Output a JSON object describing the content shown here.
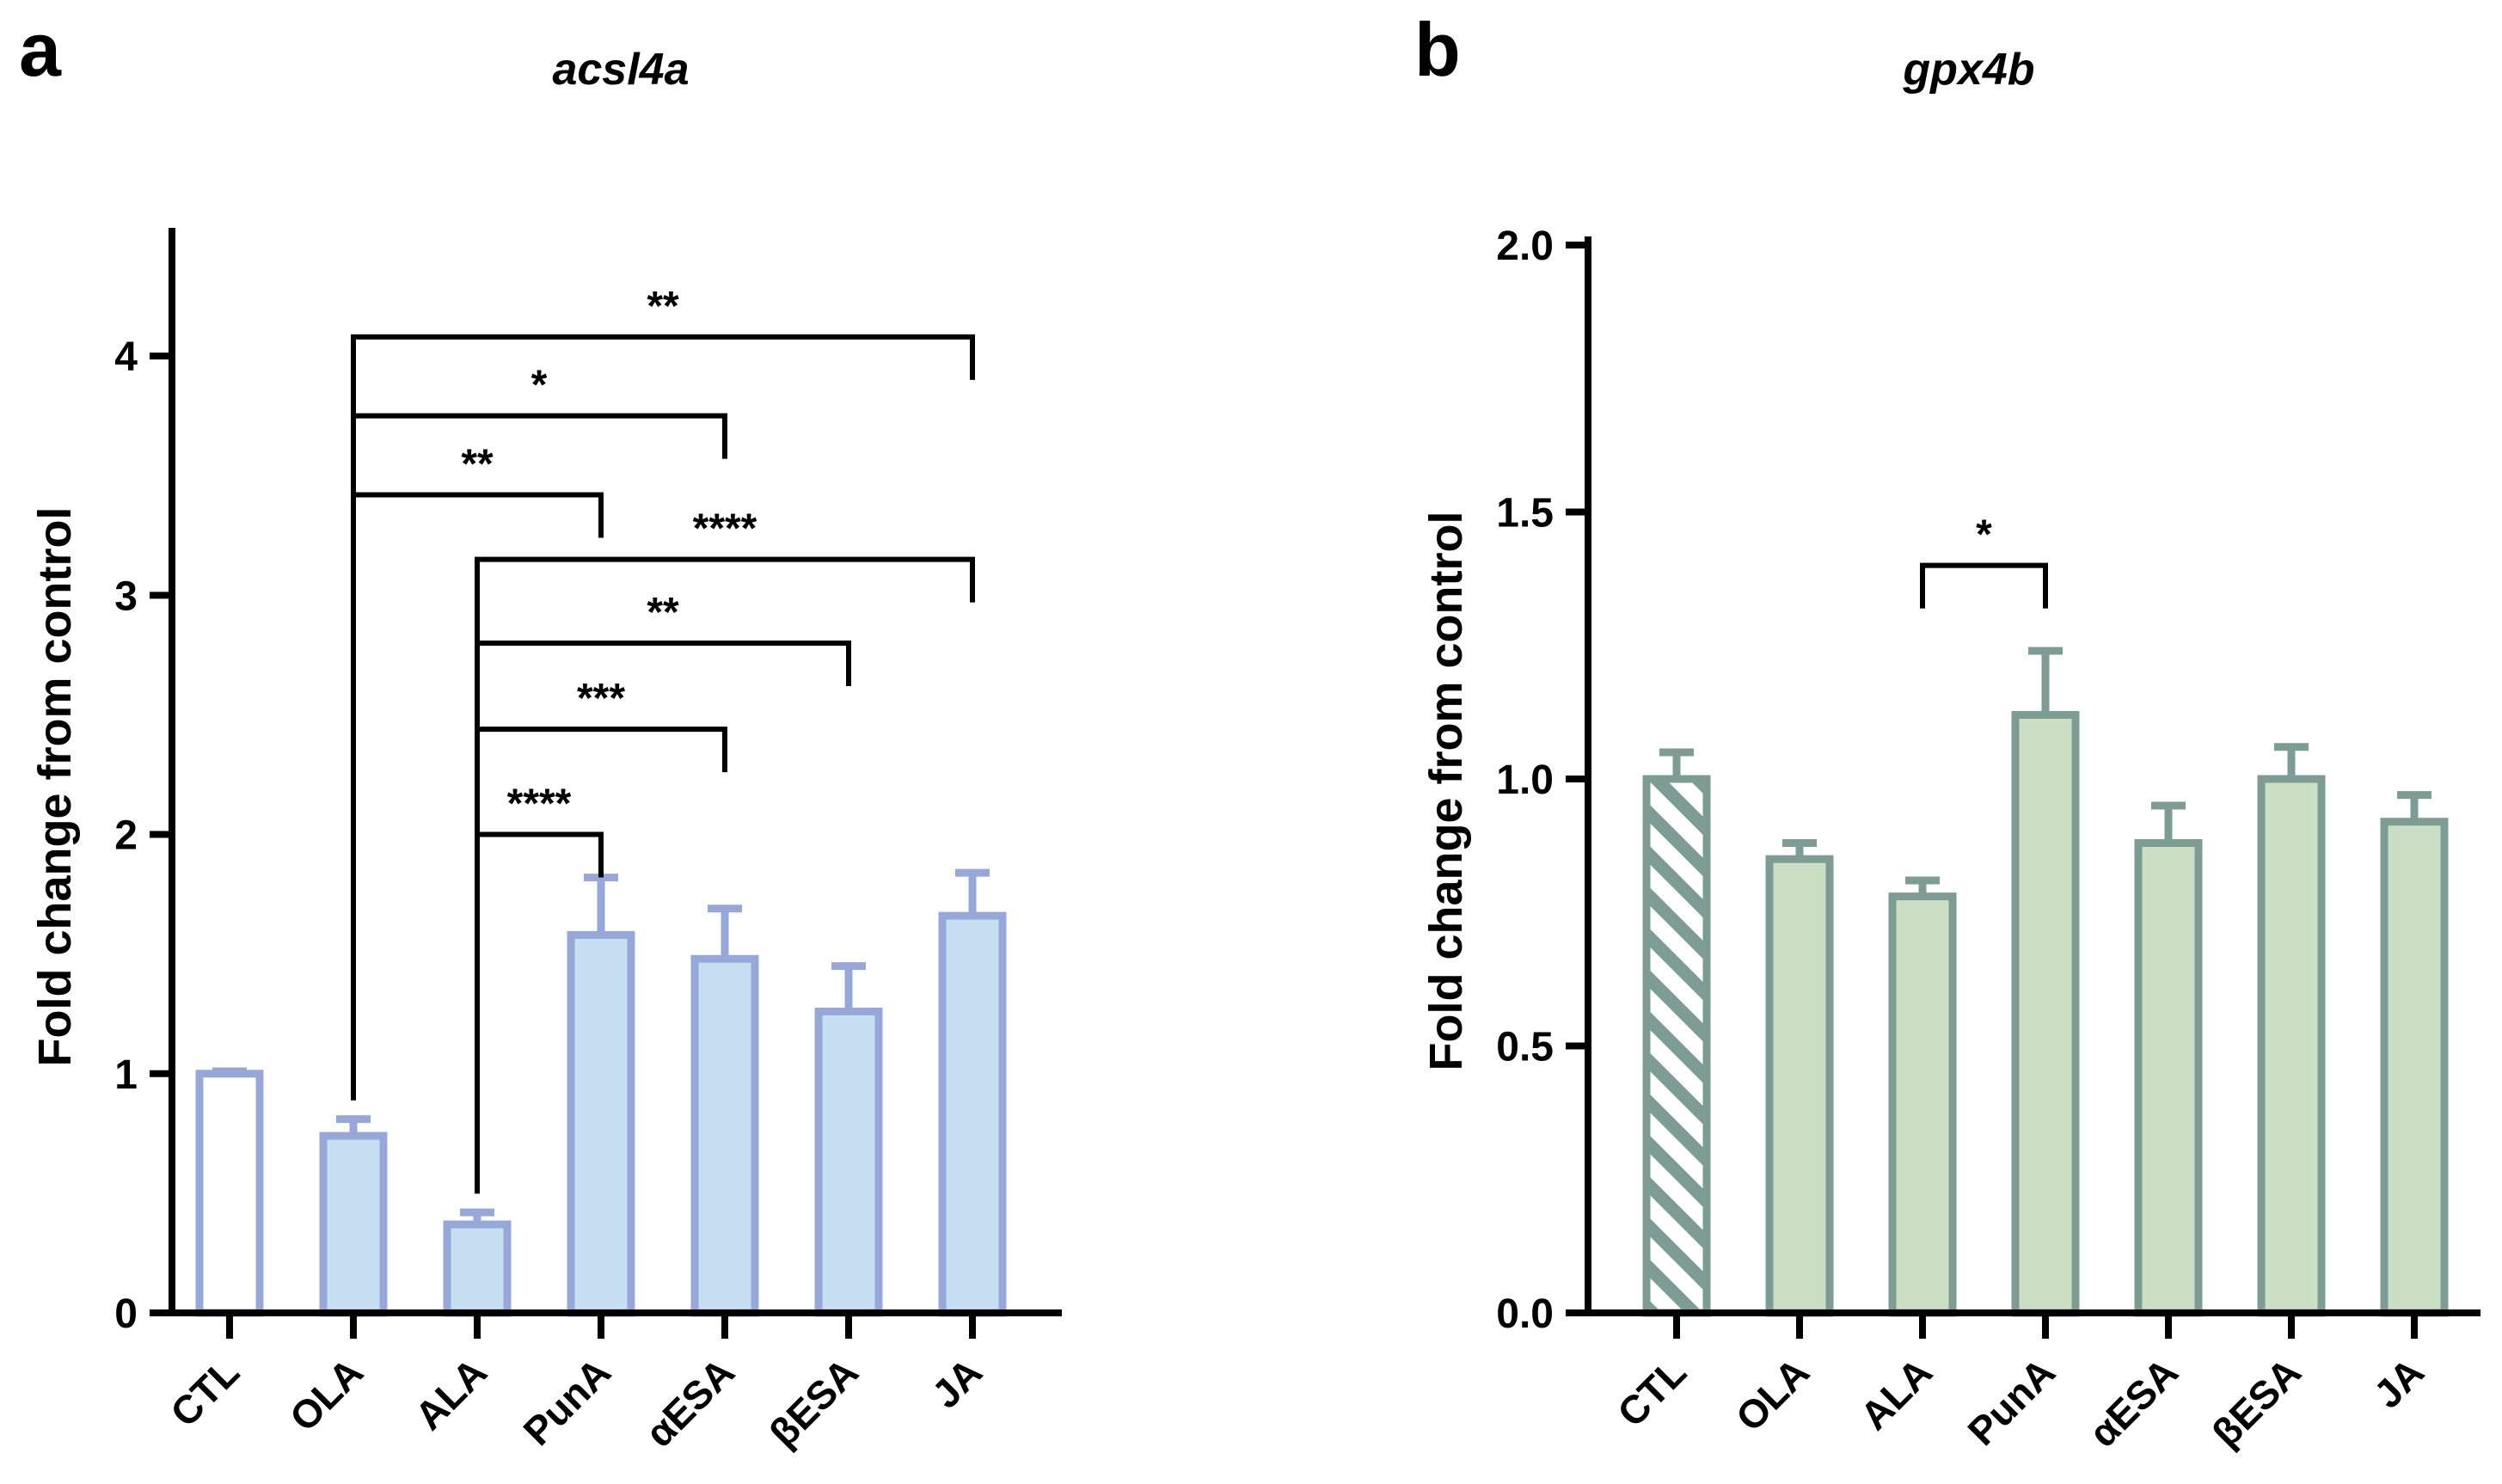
{
  "chart_data": [
    {
      "panel": "a",
      "type": "bar",
      "title": "acsl4a",
      "ylabel": "Fold change from control",
      "xlabel": "",
      "categories": [
        "CTL",
        "OLA",
        "ALA",
        "PunA",
        "αESA",
        "βESA",
        "JA"
      ],
      "values": [
        1.0,
        0.74,
        0.37,
        1.58,
        1.48,
        1.26,
        1.66
      ],
      "errors": [
        0.01,
        0.07,
        0.05,
        0.24,
        0.21,
        0.19,
        0.18
      ],
      "ylim": [
        0,
        4.5
      ],
      "yticks": [
        "0",
        "1",
        "2",
        "3",
        "4"
      ],
      "ytick_values": [
        0,
        1,
        2,
        3,
        4
      ],
      "grid": false,
      "colors": {
        "fill": "#c6dff3",
        "stroke": "#97a8d8",
        "control_fill": "#ffffff"
      },
      "significance": [
        {
          "from": 1,
          "to": 6,
          "label": "**",
          "y": 4.08
        },
        {
          "from": 1,
          "to": 4,
          "label": "*",
          "y": 3.75
        },
        {
          "from": 1,
          "to": 3,
          "label": "**",
          "y": 3.42
        },
        {
          "from": 2,
          "to": 6,
          "label": "****",
          "y": 3.15
        },
        {
          "from": 2,
          "to": 5,
          "label": "**",
          "y": 2.8
        },
        {
          "from": 2,
          "to": 4,
          "label": "***",
          "y": 2.44
        },
        {
          "from": 2,
          "to": 3,
          "label": "****",
          "y": 2.0
        }
      ]
    },
    {
      "panel": "b",
      "type": "bar",
      "title": "gpx4b",
      "ylabel": "Fold change from control",
      "xlabel": "",
      "categories": [
        "CTL",
        "OLA",
        "ALA",
        "PunA",
        "αESA",
        "βESA",
        "JA"
      ],
      "values": [
        1.0,
        0.85,
        0.78,
        1.12,
        0.88,
        1.0,
        0.92
      ],
      "errors": [
        0.05,
        0.03,
        0.03,
        0.12,
        0.07,
        0.06,
        0.05
      ],
      "ylim": [
        0,
        2.0
      ],
      "yticks": [
        "0.0",
        "0.5",
        "1.0",
        "1.5",
        "2.0"
      ],
      "ytick_values": [
        0,
        0.5,
        1.0,
        1.5,
        2.0
      ],
      "grid": false,
      "colors": {
        "fill": "#cbdfc5",
        "stroke": "#7e9c93",
        "control_fill": "hatched"
      },
      "significance": [
        {
          "from": 2,
          "to": 3,
          "label": "*",
          "y": 1.4
        }
      ]
    }
  ]
}
